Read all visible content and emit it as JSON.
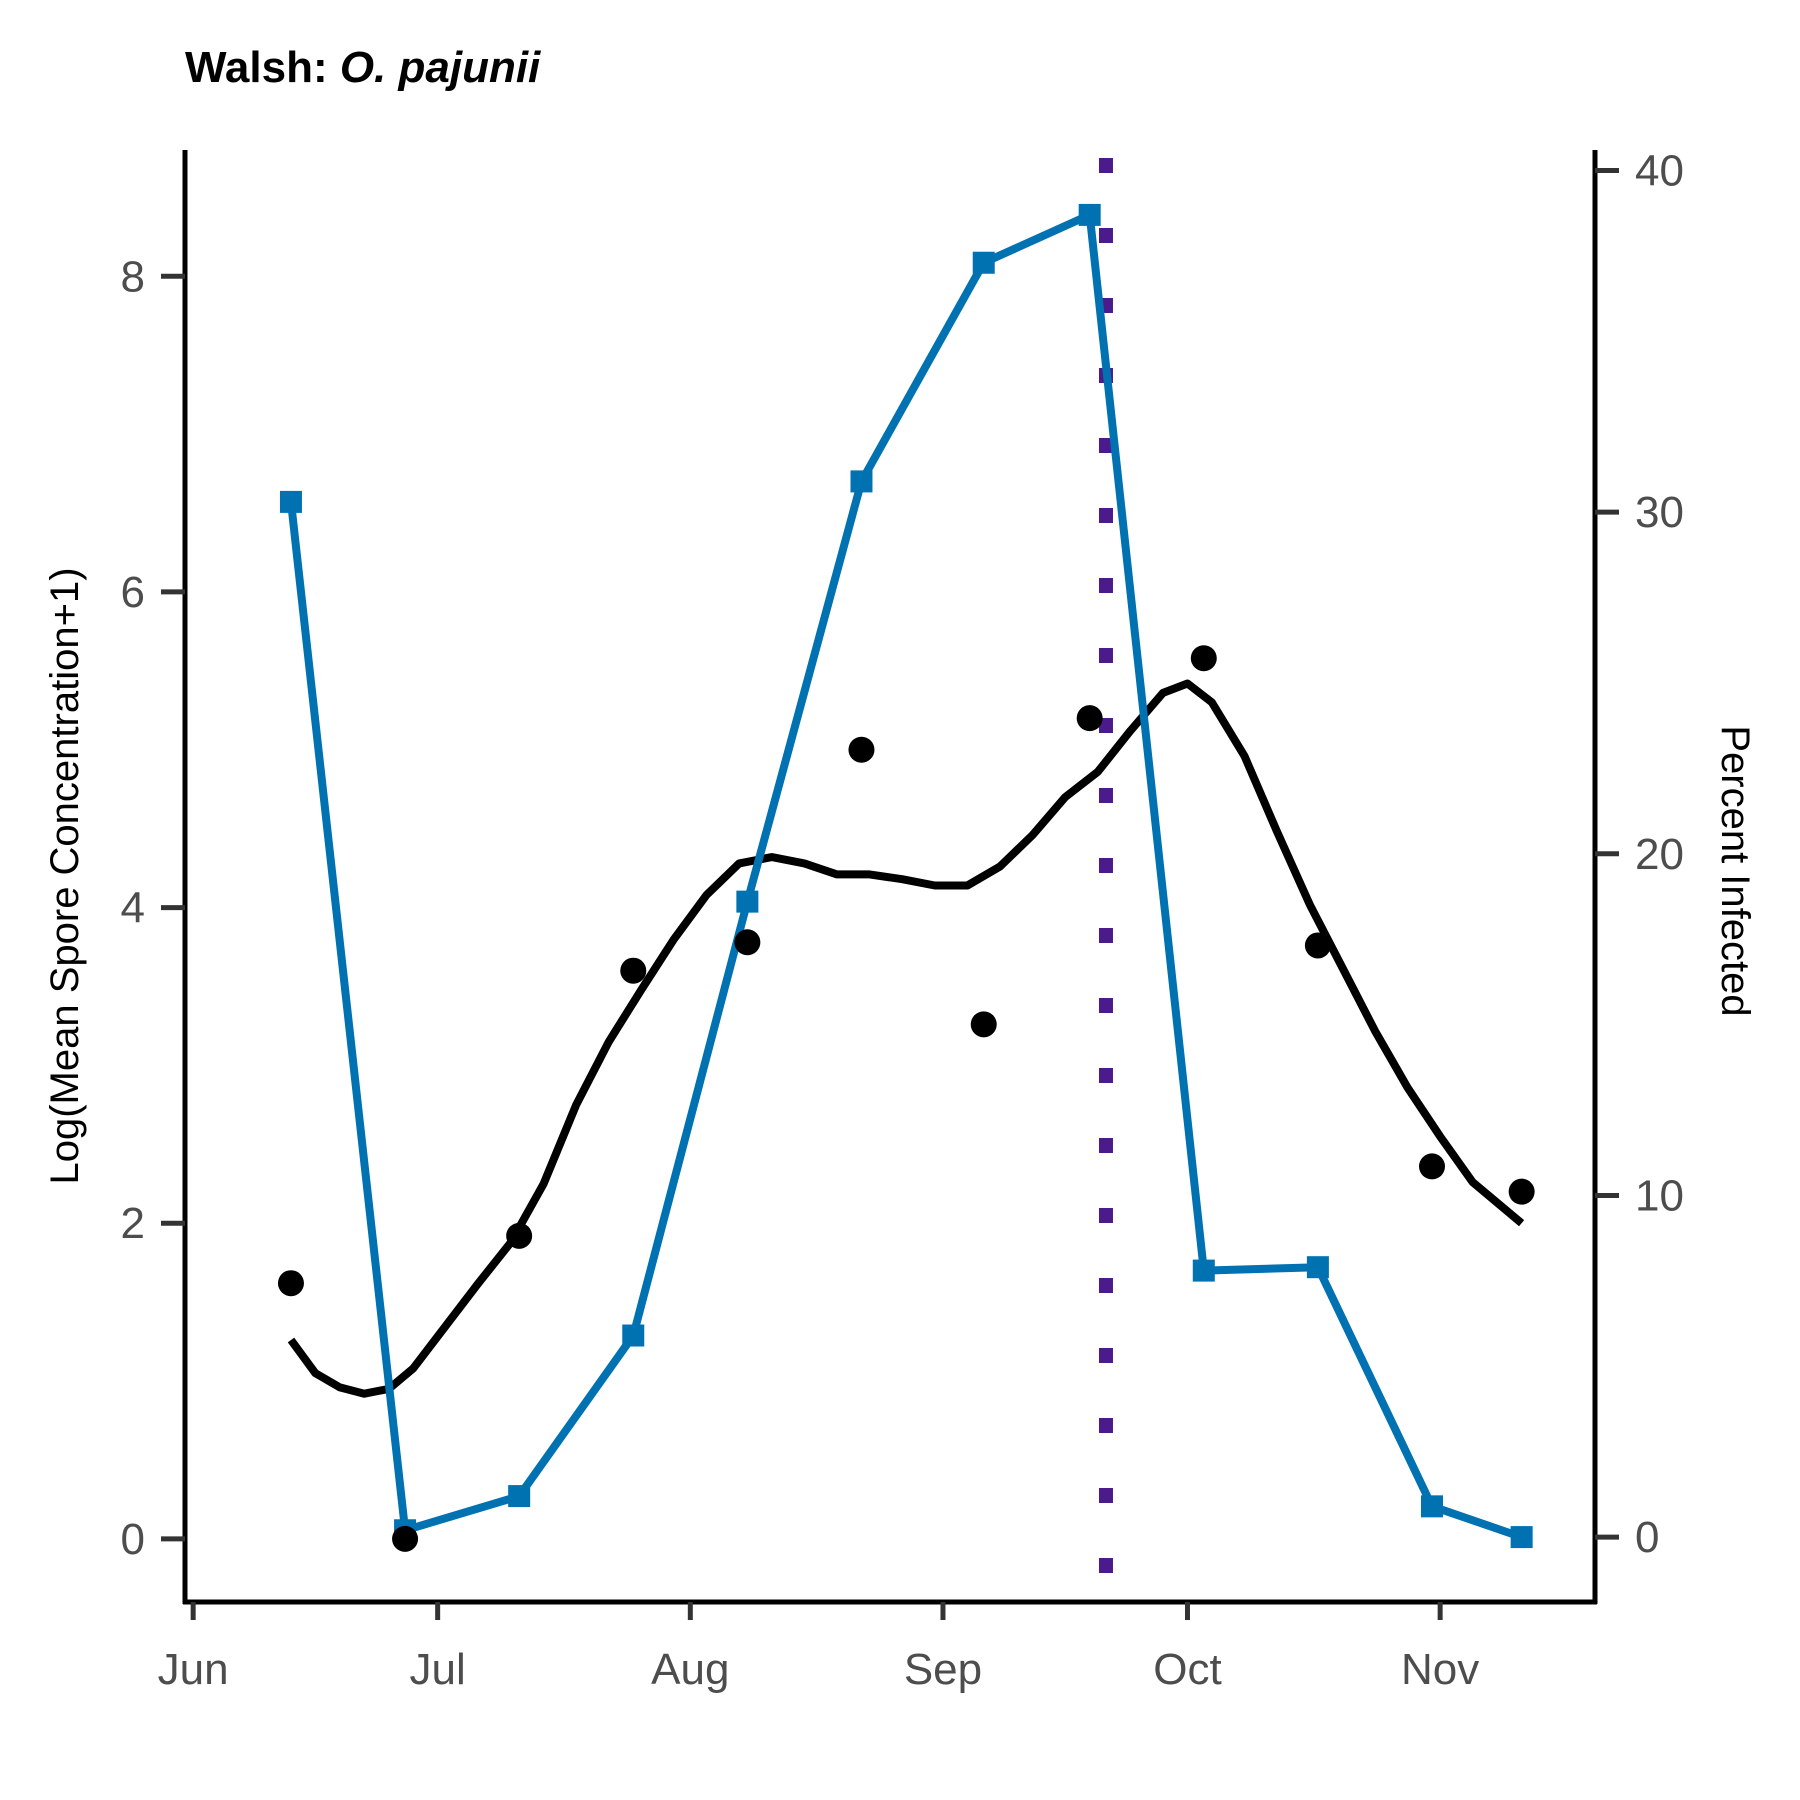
{
  "chart_data": {
    "type": "line",
    "title_prefix": "Walsh: ",
    "title_species": "O. pajunii",
    "ylabel_left": "Log(Mean Spore Concentration+1)",
    "ylabel_right": "Percent Infected",
    "x_ticks": [
      {
        "label": "Jun",
        "date": "2021-06-01"
      },
      {
        "label": "Jul",
        "date": "2021-07-01"
      },
      {
        "label": "Aug",
        "date": "2021-08-01"
      },
      {
        "label": "Sep",
        "date": "2021-09-01"
      },
      {
        "label": "Oct",
        "date": "2021-10-01"
      },
      {
        "label": "Nov",
        "date": "2021-11-01"
      }
    ],
    "xlim": [
      "2021-05-31",
      "2021-11-20"
    ],
    "ylim_left": [
      -0.4,
      8.8
    ],
    "ylim_right": [
      -1.9,
      40.6
    ],
    "y_ticks_left": [
      0,
      2,
      4,
      6,
      8
    ],
    "y_ticks_right": [
      0,
      10,
      20,
      30,
      40
    ],
    "colors": {
      "points": "#000000",
      "smooth": "#000000",
      "infected": "#0072b2",
      "vline": "#4b1a8b",
      "axis": "#000000",
      "tick": "#333333"
    },
    "spore_points": [
      {
        "date": "2021-06-13",
        "value": 1.62
      },
      {
        "date": "2021-06-27",
        "value": 0.0
      },
      {
        "date": "2021-07-11",
        "value": 1.92
      },
      {
        "date": "2021-07-25",
        "value": 3.6
      },
      {
        "date": "2021-08-08",
        "value": 3.78
      },
      {
        "date": "2021-08-22",
        "value": 5.0
      },
      {
        "date": "2021-09-06",
        "value": 3.26
      },
      {
        "date": "2021-09-19",
        "value": 5.2
      },
      {
        "date": "2021-10-03",
        "value": 5.58
      },
      {
        "date": "2021-10-17",
        "value": 3.76
      },
      {
        "date": "2021-10-31",
        "value": 2.36
      },
      {
        "date": "2021-11-11",
        "value": 2.2
      }
    ],
    "spore_smooth": [
      {
        "date": "2021-06-13",
        "value": 1.26
      },
      {
        "date": "2021-06-16",
        "value": 1.05
      },
      {
        "date": "2021-06-19",
        "value": 0.96
      },
      {
        "date": "2021-06-22",
        "value": 0.92
      },
      {
        "date": "2021-06-25",
        "value": 0.95
      },
      {
        "date": "2021-06-28",
        "value": 1.08
      },
      {
        "date": "2021-07-02",
        "value": 1.35
      },
      {
        "date": "2021-07-06",
        "value": 1.62
      },
      {
        "date": "2021-07-10",
        "value": 1.88
      },
      {
        "date": "2021-07-14",
        "value": 2.25
      },
      {
        "date": "2021-07-18",
        "value": 2.75
      },
      {
        "date": "2021-07-22",
        "value": 3.15
      },
      {
        "date": "2021-07-26",
        "value": 3.48
      },
      {
        "date": "2021-07-30",
        "value": 3.8
      },
      {
        "date": "2021-08-03",
        "value": 4.08
      },
      {
        "date": "2021-08-07",
        "value": 4.28
      },
      {
        "date": "2021-08-11",
        "value": 4.32
      },
      {
        "date": "2021-08-15",
        "value": 4.28
      },
      {
        "date": "2021-08-19",
        "value": 4.21
      },
      {
        "date": "2021-08-23",
        "value": 4.21
      },
      {
        "date": "2021-08-27",
        "value": 4.18
      },
      {
        "date": "2021-08-31",
        "value": 4.14
      },
      {
        "date": "2021-09-04",
        "value": 4.14
      },
      {
        "date": "2021-09-08",
        "value": 4.26
      },
      {
        "date": "2021-09-12",
        "value": 4.46
      },
      {
        "date": "2021-09-16",
        "value": 4.7
      },
      {
        "date": "2021-09-20",
        "value": 4.86
      },
      {
        "date": "2021-09-24",
        "value": 5.12
      },
      {
        "date": "2021-09-28",
        "value": 5.36
      },
      {
        "date": "2021-10-01",
        "value": 5.42
      },
      {
        "date": "2021-10-04",
        "value": 5.3
      },
      {
        "date": "2021-10-08",
        "value": 4.96
      },
      {
        "date": "2021-10-12",
        "value": 4.48
      },
      {
        "date": "2021-10-16",
        "value": 4.02
      },
      {
        "date": "2021-10-20",
        "value": 3.62
      },
      {
        "date": "2021-10-24",
        "value": 3.22
      },
      {
        "date": "2021-10-28",
        "value": 2.86
      },
      {
        "date": "2021-11-01",
        "value": 2.55
      },
      {
        "date": "2021-11-05",
        "value": 2.26
      },
      {
        "date": "2021-11-11",
        "value": 2.0
      }
    ],
    "percent_infected": [
      {
        "date": "2021-06-13",
        "value": 30.3
      },
      {
        "date": "2021-06-27",
        "value": 0.2
      },
      {
        "date": "2021-07-11",
        "value": 1.2
      },
      {
        "date": "2021-07-25",
        "value": 5.9
      },
      {
        "date": "2021-08-08",
        "value": 18.6
      },
      {
        "date": "2021-08-22",
        "value": 30.9
      },
      {
        "date": "2021-09-06",
        "value": 37.3
      },
      {
        "date": "2021-09-19",
        "value": 38.7
      },
      {
        "date": "2021-10-03",
        "value": 7.8
      },
      {
        "date": "2021-10-17",
        "value": 7.9
      },
      {
        "date": "2021-10-31",
        "value": 0.9
      },
      {
        "date": "2021-11-11",
        "value": 0.0
      }
    ],
    "vline_date": "2021-09-21",
    "grid": false,
    "legend": "none"
  }
}
